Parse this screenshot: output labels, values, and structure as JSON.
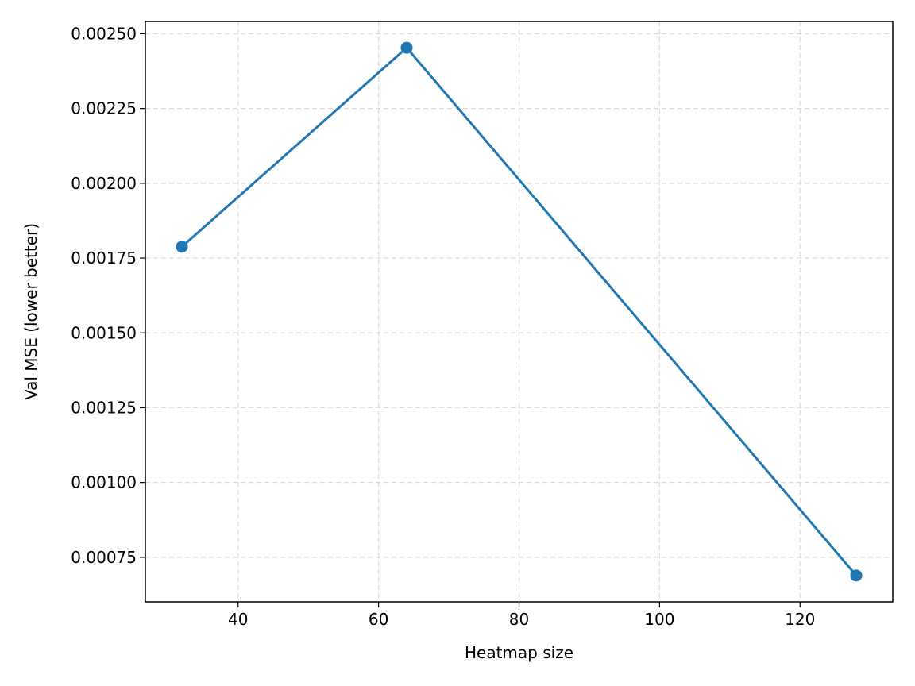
{
  "chart_data": {
    "type": "line",
    "title": "",
    "xlabel": "Heatmap size",
    "ylabel": "Val MSE (lower better)",
    "x": [
      32,
      64,
      128
    ],
    "series": [
      {
        "values": [
          0.001788,
          0.002453,
          0.000689
        ],
        "color": "#1f77b4",
        "marker": "circle"
      }
    ],
    "xlim": [
      26.8,
      133.2
    ],
    "ylim": [
      0.000601,
      0.002541
    ],
    "xticks": [
      40,
      60,
      80,
      100,
      120
    ],
    "xtick_labels": [
      "40",
      "60",
      "80",
      "100",
      "120"
    ],
    "yticks": [
      0.00075,
      0.001,
      0.00125,
      0.0015,
      0.00175,
      0.002,
      0.00225,
      0.0025
    ],
    "ytick_labels": [
      "0.00075",
      "0.00100",
      "0.00125",
      "0.00150",
      "0.00175",
      "0.00200",
      "0.00225",
      "0.00250"
    ],
    "grid": true,
    "grid_style": "dashed",
    "legend": false
  }
}
